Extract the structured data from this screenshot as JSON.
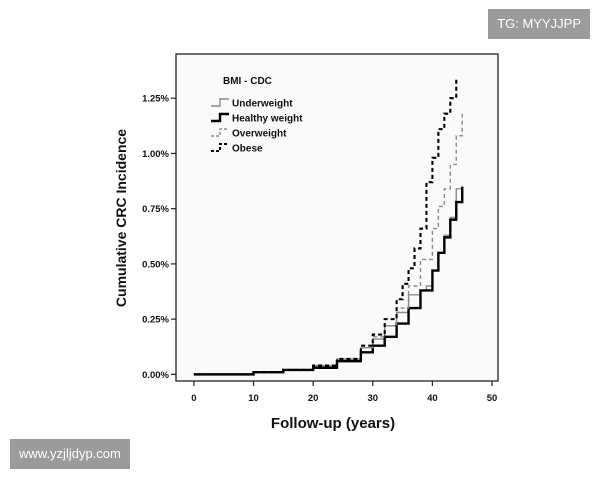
{
  "chart_data": {
    "type": "line",
    "step": true,
    "xlabel": "Follow-up (years)",
    "ylabel": "Cumulative CRC Incidence",
    "xlim": [
      -3,
      51
    ],
    "ylim": [
      -0.03,
      1.45
    ],
    "x_ticks": [
      0,
      10,
      20,
      30,
      40,
      50
    ],
    "y_ticks": [
      0,
      0.25,
      0.5,
      0.75,
      1.0,
      1.25
    ],
    "y_tick_labels": [
      "0.00%",
      "0.25%",
      "0.50%",
      "0.75%",
      "1.00%",
      "1.25%"
    ],
    "grid": false,
    "legend": {
      "title": "BMI - CDC",
      "position": "top-left",
      "entries": [
        "Underweight",
        "Healthy weight",
        "Overweight",
        "Obese"
      ]
    },
    "series": [
      {
        "name": "Underweight",
        "color": "#8a8a8a",
        "dash": "solid",
        "x": [
          0,
          10,
          15,
          20,
          24,
          28,
          30,
          32,
          34,
          36,
          38,
          39,
          40,
          41,
          42,
          43,
          44,
          45
        ],
        "y": [
          0,
          0.01,
          0.02,
          0.04,
          0.07,
          0.12,
          0.16,
          0.22,
          0.28,
          0.36,
          0.38,
          0.4,
          0.47,
          0.55,
          0.63,
          0.71,
          0.84,
          0.84
        ]
      },
      {
        "name": "Healthy weight",
        "color": "#000000",
        "dash": "solid",
        "x": [
          0,
          10,
          15,
          20,
          24,
          28,
          30,
          32,
          34,
          36,
          38,
          40,
          41,
          42,
          43,
          44,
          45
        ],
        "y": [
          0,
          0.01,
          0.02,
          0.03,
          0.06,
          0.1,
          0.13,
          0.17,
          0.23,
          0.3,
          0.38,
          0.47,
          0.55,
          0.62,
          0.7,
          0.78,
          0.85
        ]
      },
      {
        "name": "Overweight",
        "color": "#8a8a8a",
        "dash": "dashed",
        "x": [
          0,
          10,
          15,
          20,
          24,
          28,
          30,
          32,
          34,
          36,
          38,
          40,
          41,
          42,
          43,
          44,
          45
        ],
        "y": [
          0,
          0.01,
          0.02,
          0.04,
          0.07,
          0.12,
          0.17,
          0.22,
          0.3,
          0.4,
          0.52,
          0.66,
          0.76,
          0.84,
          0.95,
          1.08,
          1.18
        ]
      },
      {
        "name": "Obese",
        "color": "#000000",
        "dash": "dashed",
        "x": [
          0,
          10,
          15,
          20,
          24,
          28,
          30,
          32,
          34,
          35,
          36,
          37,
          38,
          39,
          40,
          41,
          42,
          43,
          44
        ],
        "y": [
          0,
          0.01,
          0.02,
          0.04,
          0.07,
          0.13,
          0.18,
          0.25,
          0.34,
          0.41,
          0.48,
          0.57,
          0.66,
          0.87,
          0.98,
          1.11,
          1.18,
          1.25,
          1.34
        ]
      }
    ]
  },
  "watermarks": {
    "top": "TG: MYYJJPP",
    "bottom": "www.yzjljdyp.com"
  }
}
